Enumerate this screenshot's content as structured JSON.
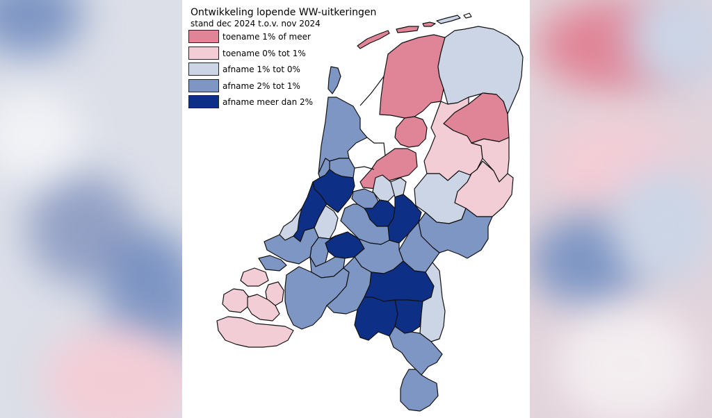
{
  "title": "Ontwikkeling lopende WW-uitkeringen",
  "subtitle": "stand dec 2024 t.o.v. nov 2024",
  "legend": [
    {
      "label": "toename 1% of meer",
      "color": "#e08597"
    },
    {
      "label": "toename 0% tot 1%",
      "color": "#f3cdd6"
    },
    {
      "label": "afname 1% tot 0%",
      "color": "#cbd5e6"
    },
    {
      "label": "afname 2% tot 1%",
      "color": "#7e96c4"
    },
    {
      "label": "afname meer dan 2%",
      "color": "#0d2f85"
    }
  ],
  "background": {
    "left_tint": "#dcdfe8",
    "right_tint": "#e2d4db"
  }
}
